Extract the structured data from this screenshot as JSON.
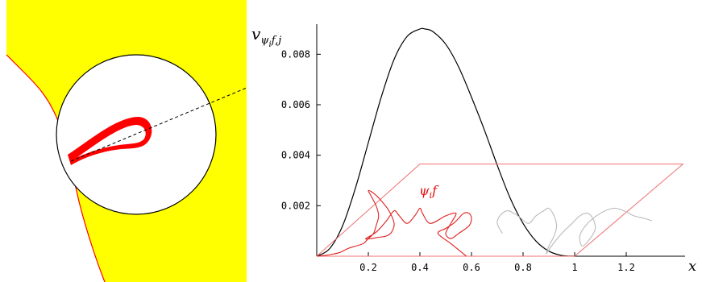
{
  "left_panel": {
    "colors": {
      "region_fill": "#ffff00",
      "boundary": "#ff0000",
      "loop": "#ff0000",
      "disk_stroke": "#000000",
      "dashed_line": "#000000"
    }
  },
  "chart_data": {
    "type": "line",
    "title": "",
    "ylabel_parts": {
      "base": "v",
      "sub_psi": "ψ",
      "sub_i": "i",
      "sub_rest": "f,j"
    },
    "xlabel": "x",
    "xlim": [
      0,
      1.44
    ],
    "ylim": [
      0,
      0.0093
    ],
    "xticks": [
      {
        "value": 0.2,
        "label": "0.2"
      },
      {
        "value": 0.4,
        "label": "0.4"
      },
      {
        "value": 0.6,
        "label": "0.6"
      },
      {
        "value": 0.8,
        "label": "0.8"
      },
      {
        "value": 1.0,
        "label": "1"
      },
      {
        "value": 1.2,
        "label": "1.2"
      }
    ],
    "yticks": [
      {
        "value": 0.002,
        "label": "0.002"
      },
      {
        "value": 0.004,
        "label": "0.004"
      },
      {
        "value": 0.006,
        "label": "0.006"
      },
      {
        "value": 0.008,
        "label": "0.008"
      }
    ],
    "curve_label": {
      "psi": "ψ",
      "i": "i",
      "f": "f"
    },
    "series": [
      {
        "role": "main-curve",
        "color": "#000000",
        "x": [
          0,
          0.05,
          0.1,
          0.15,
          0.2,
          0.25,
          0.3,
          0.35,
          0.4,
          0.42,
          0.45,
          0.5,
          0.55,
          0.6,
          0.65,
          0.7,
          0.75,
          0.8,
          0.85,
          0.9,
          0.95,
          1.0
        ],
        "y": [
          0,
          0.0003,
          0.0012,
          0.0027,
          0.0045,
          0.0063,
          0.0078,
          0.0087,
          0.009,
          0.009,
          0.0089,
          0.0084,
          0.0075,
          0.0063,
          0.005,
          0.0036,
          0.0023,
          0.0013,
          0.0006,
          0.0002,
          3e-05,
          0
        ]
      },
      {
        "role": "parallelogram",
        "color": "#f07070",
        "x": [
          0,
          0.4,
          1.42,
          1.0,
          0
        ],
        "y": [
          0,
          0.00365,
          0.00365,
          0,
          0
        ]
      },
      {
        "role": "psi-curve",
        "color": "#e02020",
        "x": [
          0.58,
          0.52,
          0.47,
          0.5,
          0.53,
          0.55,
          0.57,
          0.59,
          0.6,
          0.59,
          0.55,
          0.52,
          0.5,
          0.52,
          0.54,
          0.5,
          0.44,
          0.41,
          0.4,
          0.38,
          0.35,
          0.32,
          0.3,
          0.27,
          0.23,
          0.19,
          0.21,
          0.24,
          0.27,
          0.29,
          0.3,
          0.28,
          0.25,
          0.22,
          0.2,
          0.21,
          0.23,
          0.24,
          0.23,
          0.22,
          0.2,
          0.18,
          0.15,
          0.12,
          0.09,
          0.06,
          0.03,
          0.01,
          0
        ],
        "y": [
          0,
          0.0005,
          0.0009,
          0.0011,
          0.0013,
          0.0015,
          0.0017,
          0.0017,
          0.0015,
          0.0012,
          0.0009,
          0.0007,
          0.0009,
          0.0013,
          0.0017,
          0.0016,
          0.0013,
          0.0017,
          0.0019,
          0.0016,
          0.0013,
          0.0016,
          0.0018,
          0.0014,
          0.00095,
          0.0007,
          0.0007,
          0.00075,
          0.0008,
          0.00095,
          0.0013,
          0.0018,
          0.0022,
          0.0025,
          0.0026,
          0.0024,
          0.002,
          0.0016,
          0.0012,
          0.0009,
          0.0007,
          0.0005,
          0.0004,
          0.0003,
          0.00015,
          8e-05,
          3e-05,
          1e-05,
          0
        ]
      },
      {
        "role": "psi-curve-shifted",
        "color": "#bbbbbb",
        "x": [
          0.72,
          0.7,
          0.71,
          0.74,
          0.78,
          0.82,
          0.85,
          0.88,
          0.9,
          0.92,
          0.93,
          0.92,
          0.9,
          0.89,
          0.91,
          0.95,
          0.99,
          1.02,
          1.05,
          1.07,
          1.08,
          1.06,
          1.03,
          1.02,
          1.05,
          1.1,
          1.15,
          1.19,
          1.23,
          1.27,
          1.3
        ],
        "y": [
          0.0009,
          0.0013,
          0.0016,
          0.0018,
          0.0016,
          0.0013,
          0.0016,
          0.0018,
          0.0019,
          0.0016,
          0.0012,
          0.0008,
          0.0004,
          0.0001,
          0.0004,
          0.0009,
          0.0013,
          0.0016,
          0.0017,
          0.0015,
          0.0011,
          0.0007,
          0.0004,
          0.0008,
          0.0013,
          0.0017,
          0.0019,
          0.0018,
          0.0016,
          0.0015,
          0.0014
        ]
      }
    ]
  }
}
